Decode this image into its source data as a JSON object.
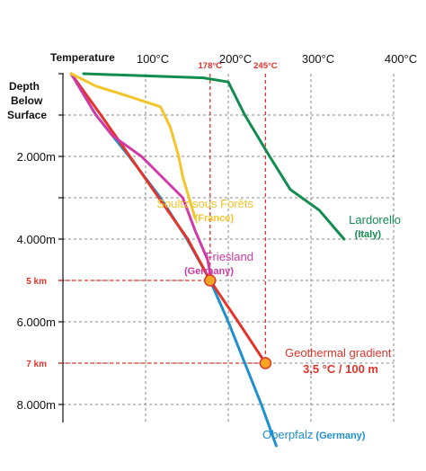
{
  "chart_data": {
    "type": "line",
    "x_axis": {
      "label": "Temperature",
      "unit": "°C",
      "ticks": [
        {
          "value": 100,
          "label": "100°C"
        },
        {
          "value": 200,
          "label": "200°C"
        },
        {
          "value": 300,
          "label": "300°C"
        },
        {
          "value": 400,
          "label": "400°C"
        }
      ],
      "xlim": [
        0,
        400
      ]
    },
    "y_axis": {
      "label_lines": [
        "Depth",
        "Below",
        "Surface"
      ],
      "unit": "m",
      "inverted": true,
      "ticks": [
        {
          "value": 2000,
          "label": "2.000m"
        },
        {
          "value": 4000,
          "label": "4.000m"
        },
        {
          "value": 6000,
          "label": "6.000m"
        },
        {
          "value": 8000,
          "label": "8.000m"
        }
      ],
      "extra_ticks": [
        {
          "value": 5000,
          "label": "5 km",
          "color": "#e3342b"
        },
        {
          "value": 7000,
          "label": "7 km",
          "color": "#e3342b"
        }
      ],
      "ylim": [
        0,
        9500
      ]
    },
    "grid": true,
    "reference_lines": [
      {
        "axis": "x",
        "value": 178,
        "label": "178°C",
        "color": "#e3342b",
        "to_depth": 5000
      },
      {
        "axis": "x",
        "value": 245,
        "label": "245°C",
        "color": "#e3342b",
        "to_depth": 7000
      },
      {
        "axis": "y",
        "value": 5000,
        "color": "#e3342b",
        "to_temp": 178
      },
      {
        "axis": "y",
        "value": 7000,
        "color": "#e3342b",
        "to_temp": 245
      }
    ],
    "series": [
      {
        "name": "Oberpfalz",
        "name_suffix": "(Germany)",
        "color": "#1e8fcf",
        "points": [
          [
            10,
            0
          ],
          [
            40,
            1000
          ],
          [
            80,
            2000
          ],
          [
            118,
            3000
          ],
          [
            150,
            4000
          ],
          [
            178,
            5000
          ],
          [
            200,
            6000
          ],
          [
            220,
            7000
          ],
          [
            240,
            8000
          ],
          [
            258,
            9000
          ]
        ]
      },
      {
        "name": "Geothermal gradient",
        "subtitle": "3,5 °C / 100 m",
        "color": "#e3342b",
        "points": [
          [
            10,
            0
          ],
          [
            46,
            1000
          ],
          [
            81,
            2000
          ],
          [
            116,
            3000
          ],
          [
            151,
            4000
          ],
          [
            178,
            5000
          ],
          [
            212,
            6000
          ],
          [
            245,
            7000
          ]
        ]
      },
      {
        "name": "Friesland",
        "name_suffix": "(Germany)",
        "color": "#d13aa6",
        "points": [
          [
            10,
            0
          ],
          [
            40,
            1000
          ],
          [
            60,
            1500
          ],
          [
            95,
            2000
          ],
          [
            120,
            2500
          ],
          [
            145,
            3000
          ],
          [
            160,
            3800
          ],
          [
            175,
            4500
          ],
          [
            180,
            5000
          ]
        ]
      },
      {
        "name": "Soultz sous Forêts",
        "name_suffix": "(France)",
        "color": "#f4c52a",
        "points": [
          [
            10,
            0
          ],
          [
            40,
            300
          ],
          [
            80,
            550
          ],
          [
            118,
            800
          ],
          [
            130,
            1300
          ],
          [
            140,
            2000
          ],
          [
            145,
            2500
          ],
          [
            160,
            3500
          ]
        ]
      },
      {
        "name": "Lardorello",
        "name_suffix": "(Italy)",
        "color": "#118c4e",
        "points": [
          [
            25,
            0
          ],
          [
            170,
            100
          ],
          [
            200,
            200
          ],
          [
            220,
            1000
          ],
          [
            250,
            2000
          ],
          [
            275,
            2800
          ],
          [
            310,
            3300
          ],
          [
            340,
            4000
          ]
        ]
      }
    ],
    "markers": [
      {
        "temp": 178,
        "depth": 5000,
        "color": "#f6a623"
      },
      {
        "temp": 245,
        "depth": 7000,
        "color": "#f6a623"
      }
    ]
  }
}
